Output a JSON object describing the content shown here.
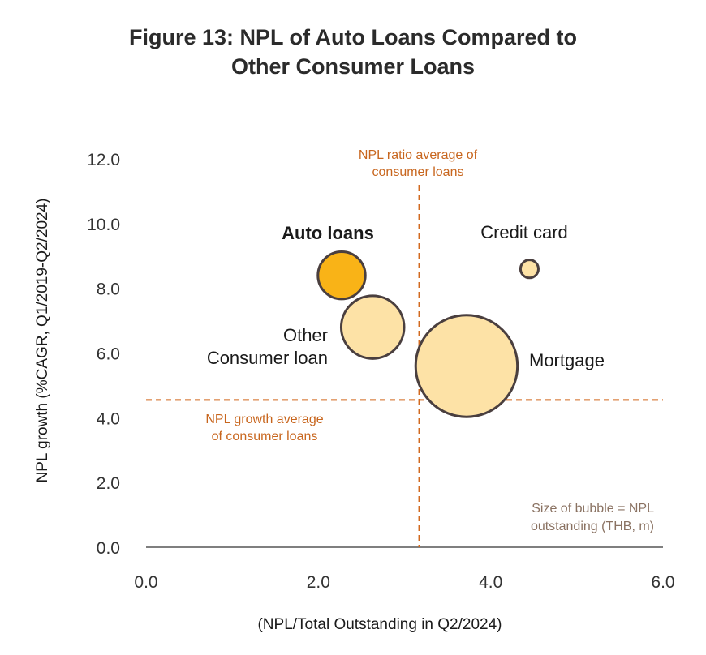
{
  "title": {
    "line1": "Figure 13: NPL of Auto Loans Compared to",
    "line2": "Other Consumer Loans"
  },
  "chart_data": {
    "type": "scatter",
    "subtype": "bubble",
    "xlabel": "(NPL/Total Outstanding in Q2/2024)",
    "ylabel": "NPL growth   (%CAGR, Q1/2019-Q2/2024)",
    "xlim": [
      0,
      6
    ],
    "ylim": [
      0,
      12
    ],
    "x_ticks": [
      "0.0",
      "2.0",
      "4.0",
      "6.0"
    ],
    "y_ticks": [
      "0.0",
      "2.0",
      "4.0",
      "6.0",
      "8.0",
      "10.0",
      "12.0"
    ],
    "grid": false,
    "points": [
      {
        "label": "Auto loans",
        "x": 2.27,
        "y": 8.4,
        "size": 21,
        "color": "#f9b317",
        "bold": true
      },
      {
        "label": "Other Consumer loan",
        "x": 2.63,
        "y": 6.8,
        "size": 37,
        "color": "#fde2a6",
        "bold": false
      },
      {
        "label": "Credit card",
        "x": 4.45,
        "y": 8.6,
        "size": 3,
        "color": "#fde2a6",
        "bold": false
      },
      {
        "label": "Mortgage",
        "x": 3.72,
        "y": 5.6,
        "size": 97,
        "color": "#fde2a6",
        "bold": false
      }
    ],
    "reference_lines": {
      "vertical": {
        "x": 3.17,
        "label": "NPL ratio average of consumer loans"
      },
      "horizontal": {
        "y": 4.55,
        "label": "NPL growth average of consumer loans"
      }
    },
    "annotations": {
      "bubble_note": "Size of bubble = NPL outstanding (THB, m)"
    }
  }
}
